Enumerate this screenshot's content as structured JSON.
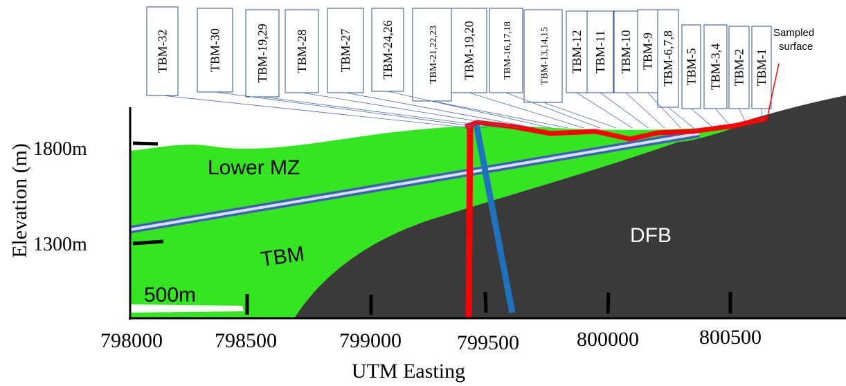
{
  "samples": [
    "TBM-32",
    "TBM-30",
    "TBM-19,29",
    "TBM-28",
    "TBM-27",
    "TBM-24,26",
    "TBM-21,22,23",
    "TBM-19,20",
    "TBM-16,17,18",
    "TBM-13,14,15",
    "TBM-12",
    "TBM-11",
    "TBM-10",
    "TBM-9",
    "TBM-6,7,8",
    "TBM-5",
    "TBM-3,4",
    "TBM-2",
    "TBM-1"
  ],
  "annotation": "Sampled surface",
  "y_axis": {
    "title": "Elevation (m)",
    "labels": [
      "1800m",
      "1300m"
    ]
  },
  "x_axis": {
    "title": "UTM Easting",
    "labels": [
      "798000",
      "798500",
      "799000",
      "799500",
      "800000",
      "800500"
    ]
  },
  "regions": {
    "upper": "Lower MZ",
    "lower": "TBM",
    "basement": "DFB"
  },
  "scale_bar": "500m"
}
